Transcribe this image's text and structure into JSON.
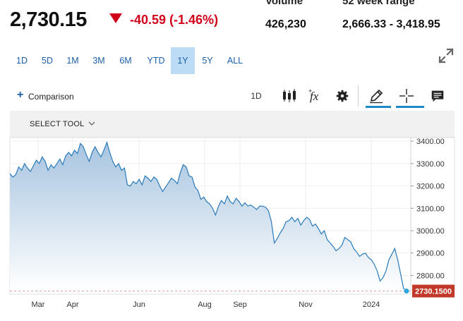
{
  "quote": {
    "price": "2,730.15",
    "change": "-40.59 (-1.46%)",
    "change_color": "#d0021b"
  },
  "stats": [
    {
      "label": "Volume",
      "value": "426,230"
    },
    {
      "label": "52 week range",
      "value": "2,666.33 - 3,418.95"
    }
  ],
  "ranges": [
    {
      "label": "1D",
      "active": false
    },
    {
      "label": "5D",
      "active": false
    },
    {
      "label": "1M",
      "active": false
    },
    {
      "label": "3M",
      "active": false
    },
    {
      "label": "6M",
      "active": false
    },
    {
      "label": "YTD",
      "active": false
    },
    {
      "label": "1Y",
      "active": true
    },
    {
      "label": "5Y",
      "active": false
    },
    {
      "label": "ALL",
      "active": false
    }
  ],
  "toolbar": {
    "comparison_label": "Comparison",
    "interval_label": "1D",
    "icons": [
      "candlestick-icon",
      "function-icon",
      "gear-icon",
      "pencil-icon",
      "crosshair-icon",
      "comment-icon"
    ],
    "select_tool_label": "SELECT TOOL"
  },
  "colors": {
    "accent": "#1c5ea8",
    "line": "#2a7ab8",
    "last_price_tag": "#c0392b"
  },
  "chart_data": {
    "type": "area",
    "x_labels": [
      "Mar",
      "Apr",
      "Jun",
      "Aug",
      "Sep",
      "Nov",
      "2024"
    ],
    "y_ticks": [
      3400,
      3300,
      3200,
      3100,
      3000,
      2900,
      2800
    ],
    "y_tick_labels": [
      "3400.00",
      "3300.00",
      "3200.00",
      "3100.00",
      "3000.00",
      "2900.00",
      "2800.00"
    ],
    "ylim": [
      2735,
      3410
    ],
    "last_price_label": "2730.1500",
    "last_value": 2730.15,
    "values": [
      3255,
      3240,
      3250,
      3285,
      3270,
      3300,
      3280,
      3265,
      3290,
      3315,
      3300,
      3330,
      3310,
      3270,
      3295,
      3280,
      3300,
      3320,
      3295,
      3335,
      3350,
      3335,
      3360,
      3345,
      3390,
      3375,
      3340,
      3310,
      3350,
      3375,
      3350,
      3330,
      3360,
      3395,
      3350,
      3310,
      3285,
      3300,
      3270,
      3280,
      3205,
      3200,
      3220,
      3210,
      3230,
      3205,
      3245,
      3235,
      3220,
      3240,
      3230,
      3200,
      3175,
      3195,
      3215,
      3235,
      3225,
      3210,
      3260,
      3295,
      3285,
      3245,
      3240,
      3195,
      3180,
      3140,
      3150,
      3130,
      3120,
      3100,
      3070,
      3110,
      3135,
      3120,
      3155,
      3130,
      3120,
      3145,
      3130,
      3110,
      3125,
      3110,
      3115,
      3105,
      3095,
      3110,
      3110,
      3105,
      3090,
      3040,
      2945,
      2965,
      2990,
      3010,
      3040,
      3045,
      3060,
      3040,
      3055,
      3025,
      3045,
      3060,
      3050,
      3020,
      3030,
      3010,
      2985,
      3000,
      2960,
      2945,
      2930,
      2910,
      2920,
      2935,
      2970,
      2960,
      2950,
      2920,
      2905,
      2885,
      2895,
      2900,
      2880,
      2870,
      2850,
      2820,
      2775,
      2790,
      2820,
      2870,
      2895,
      2920,
      2870,
      2805,
      2742,
      2730.15
    ]
  }
}
